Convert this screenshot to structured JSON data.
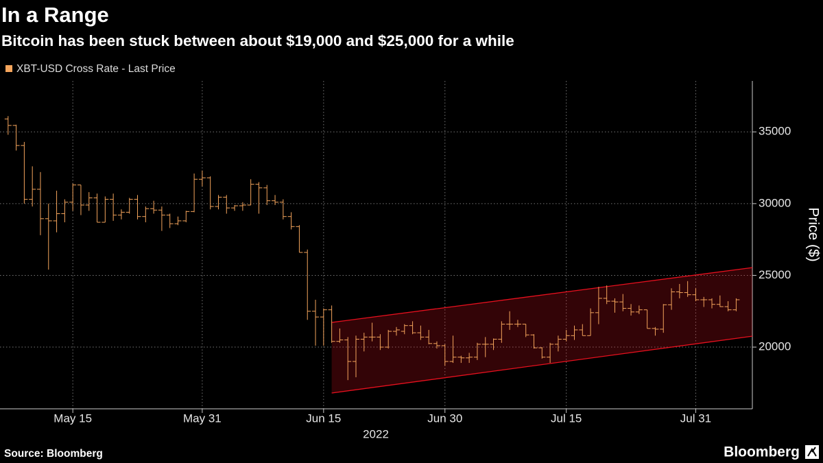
{
  "chart_data": {
    "type": "ohlc",
    "title": "In a Range",
    "subtitle": "Bitcoin has been stuck between about $19,000 and $25,000 for a while",
    "ylabel": "Price ($)",
    "xlabel": "2022",
    "source": "Source: Bloomberg",
    "brand": "Bloomberg",
    "grid": true,
    "legend": "top-left",
    "xlim": [
      "2022-05-06",
      "2022-08-07"
    ],
    "xticks": [
      {
        "value": "2022-05-15",
        "label": "May 15"
      },
      {
        "value": "2022-05-31",
        "label": "May 31"
      },
      {
        "value": "2022-06-15",
        "label": "Jun 15"
      },
      {
        "value": "2022-06-30",
        "label": "Jun 30"
      },
      {
        "value": "2022-07-15",
        "label": "Jul 15"
      },
      {
        "value": "2022-07-31",
        "label": "Jul 31"
      }
    ],
    "ylim": [
      15700,
      38550
    ],
    "yticks": [
      20000,
      25000,
      30000,
      35000
    ],
    "x": [
      "2022-05-07",
      "2022-05-08",
      "2022-05-09",
      "2022-05-10",
      "2022-05-11",
      "2022-05-12",
      "2022-05-13",
      "2022-05-14",
      "2022-05-15",
      "2022-05-16",
      "2022-05-17",
      "2022-05-18",
      "2022-05-19",
      "2022-05-20",
      "2022-05-21",
      "2022-05-22",
      "2022-05-23",
      "2022-05-24",
      "2022-05-25",
      "2022-05-26",
      "2022-05-27",
      "2022-05-28",
      "2022-05-29",
      "2022-05-30",
      "2022-05-31",
      "2022-06-01",
      "2022-06-02",
      "2022-06-03",
      "2022-06-04",
      "2022-06-05",
      "2022-06-06",
      "2022-06-07",
      "2022-06-08",
      "2022-06-09",
      "2022-06-10",
      "2022-06-11",
      "2022-06-12",
      "2022-06-13",
      "2022-06-14",
      "2022-06-15",
      "2022-06-16",
      "2022-06-17",
      "2022-06-18",
      "2022-06-19",
      "2022-06-20",
      "2022-06-21",
      "2022-06-22",
      "2022-06-23",
      "2022-06-24",
      "2022-06-25",
      "2022-06-26",
      "2022-06-27",
      "2022-06-28",
      "2022-06-29",
      "2022-06-30",
      "2022-07-01",
      "2022-07-02",
      "2022-07-03",
      "2022-07-04",
      "2022-07-05",
      "2022-07-06",
      "2022-07-07",
      "2022-07-08",
      "2022-07-09",
      "2022-07-10",
      "2022-07-11",
      "2022-07-12",
      "2022-07-13",
      "2022-07-14",
      "2022-07-15",
      "2022-07-16",
      "2022-07-17",
      "2022-07-18",
      "2022-07-19",
      "2022-07-20",
      "2022-07-21",
      "2022-07-22",
      "2022-07-23",
      "2022-07-24",
      "2022-07-25",
      "2022-07-26",
      "2022-07-27",
      "2022-07-28",
      "2022-07-29",
      "2022-07-30",
      "2022-07-31",
      "2022-08-01",
      "2022-08-02",
      "2022-08-03",
      "2022-08-04",
      "2022-08-05"
    ],
    "series": [
      {
        "name": "XBT-USD Cross Rate - Last Price",
        "color": "#f5a55c",
        "open": [
          35900,
          35450,
          34050,
          30300,
          31000,
          28950,
          28800,
          29300,
          30100,
          31300,
          29900,
          30400,
          28700,
          30300,
          29200,
          29400,
          30300,
          29100,
          29650,
          29550,
          29200,
          28600,
          28800,
          29450,
          31700,
          31800,
          29800,
          30450,
          29700,
          29850,
          29900,
          31350,
          31100,
          30200,
          30100,
          29100,
          28400,
          26600,
          22500,
          22100,
          22600,
          20400,
          20500,
          19000,
          20550,
          20700,
          20700,
          20000,
          21100,
          21100,
          21500,
          21000,
          20700,
          20250,
          20100,
          19000,
          19300,
          19250,
          19300,
          20200,
          20200,
          20550,
          21600,
          21600,
          21600,
          20850,
          19950,
          19300,
          20200,
          20550,
          20800,
          21200,
          20800,
          22400,
          23400,
          23200,
          23150,
          22700,
          22450,
          22600,
          21300,
          21250,
          22950,
          23850,
          23800,
          23650,
          23300,
          23300,
          22980,
          22820,
          22600
        ],
        "high": [
          36100,
          35500,
          34300,
          32600,
          32200,
          30000,
          30900,
          30300,
          31400,
          31300,
          30800,
          30700,
          30500,
          30700,
          29600,
          30400,
          30600,
          29800,
          30200,
          29800,
          29300,
          29100,
          29500,
          32100,
          32300,
          31900,
          30600,
          30600,
          29900,
          30100,
          31700,
          31500,
          31300,
          30600,
          30300,
          29400,
          28500,
          26800,
          23300,
          22700,
          22900,
          21300,
          20700,
          20800,
          21000,
          21700,
          20900,
          21200,
          21400,
          21600,
          21800,
          21500,
          21200,
          20400,
          20200,
          20800,
          19400,
          19600,
          20300,
          20700,
          20600,
          21800,
          22500,
          21900,
          21600,
          20900,
          20000,
          20300,
          20800,
          21200,
          21500,
          21600,
          22700,
          24200,
          24300,
          23400,
          23700,
          23000,
          22900,
          22600,
          21400,
          23000,
          24100,
          24400,
          24600,
          24100,
          23500,
          23400,
          23600,
          23200,
          23400
        ],
        "low": [
          34800,
          33700,
          30000,
          29800,
          27800,
          25400,
          28000,
          28700,
          29500,
          29200,
          29500,
          28700,
          28700,
          28800,
          28900,
          29300,
          28900,
          28700,
          29300,
          28100,
          28300,
          28500,
          28700,
          29400,
          31200,
          29600,
          29600,
          29300,
          29500,
          29500,
          29900,
          29300,
          29900,
          29900,
          28900,
          28200,
          26600,
          21900,
          20100,
          20100,
          20300,
          20300,
          17700,
          17900,
          19700,
          20400,
          19800,
          19900,
          20800,
          20900,
          20900,
          20500,
          20200,
          19900,
          18700,
          18900,
          18900,
          18900,
          19100,
          19300,
          19800,
          20300,
          21200,
          21400,
          20700,
          19900,
          19200,
          18900,
          19700,
          20400,
          20500,
          20800,
          20800,
          21600,
          23000,
          22400,
          22500,
          22200,
          22300,
          21300,
          20800,
          21000,
          22600,
          23400,
          23500,
          23200,
          22800,
          22700,
          22800,
          22500,
          22500
        ],
        "close": [
          35450,
          34050,
          30300,
          31000,
          28950,
          28800,
          29300,
          30100,
          31300,
          29900,
          30400,
          28700,
          30300,
          29200,
          29400,
          30300,
          29100,
          29650,
          29550,
          29200,
          28600,
          28800,
          29450,
          31700,
          31800,
          29800,
          30450,
          29700,
          29850,
          29900,
          31350,
          31100,
          30200,
          30100,
          29100,
          28400,
          26600,
          22500,
          22100,
          22600,
          20400,
          20500,
          19000,
          20550,
          20700,
          20700,
          20000,
          21100,
          21200,
          21500,
          21000,
          20700,
          20250,
          20100,
          19000,
          19300,
          19250,
          19300,
          20200,
          20200,
          20550,
          21600,
          21600,
          21600,
          20850,
          19950,
          19300,
          20200,
          20550,
          20800,
          21200,
          20800,
          22400,
          23400,
          23200,
          23150,
          22700,
          22450,
          22600,
          21300,
          21250,
          22950,
          23850,
          23800,
          23650,
          23300,
          23300,
          22980,
          22820,
          22600,
          23300
        ]
      }
    ],
    "channel": {
      "color": "#e8101e",
      "x": [
        "2022-06-16",
        "2022-08-07"
      ],
      "upper": [
        21720,
        25540
      ],
      "lower": [
        16800,
        20760
      ]
    }
  }
}
